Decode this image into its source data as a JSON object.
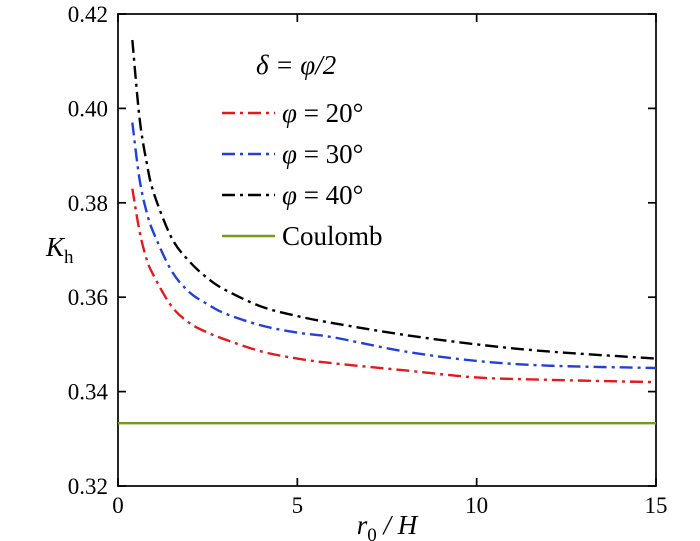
{
  "figure": {
    "background": "#ffffff",
    "border_color": "#000000"
  },
  "chart_data": {
    "type": "line",
    "title": "",
    "xlabel": "r0 / H",
    "ylabel": "Kh",
    "xlabel_parts": {
      "base": "r",
      "sub": "0",
      "suffix": " / H"
    },
    "ylabel_parts": {
      "base": "K",
      "sub": "h"
    },
    "xlim": [
      0,
      15
    ],
    "ylim": [
      0.32,
      0.42
    ],
    "xticks": [
      0,
      5,
      10,
      15
    ],
    "yticks": [
      0.32,
      0.34,
      0.36,
      0.38,
      0.4,
      0.42
    ],
    "grid": false,
    "legend": {
      "title": "δ = φ/2",
      "position": "upper-left-inside",
      "entries": [
        {
          "sym": "φ",
          "rest": " = 20°",
          "series": 0
        },
        {
          "sym": "φ",
          "rest": " = 30°",
          "series": 1
        },
        {
          "sym": "φ",
          "rest": " = 40°",
          "series": 2
        },
        {
          "sym": "",
          "rest": "Coulomb",
          "series": 3
        }
      ]
    },
    "series": [
      {
        "name": "φ = 20°",
        "color": "#e3191c",
        "dash": "dashdot",
        "x": [
          0.4,
          0.6,
          0.8,
          1,
          1.5,
          2,
          2.5,
          3,
          4,
          5,
          6,
          8,
          10,
          12,
          15
        ],
        "y": [
          0.383,
          0.374,
          0.368,
          0.3645,
          0.358,
          0.3545,
          0.3525,
          0.351,
          0.3485,
          0.347,
          0.346,
          0.3445,
          0.343,
          0.3425,
          0.342
        ]
      },
      {
        "name": "φ = 30°",
        "color": "#2040d9",
        "dash": "dashdot",
        "x": [
          0.4,
          0.6,
          0.8,
          1,
          1.5,
          2,
          2.5,
          3,
          4,
          5,
          6,
          8,
          10,
          12,
          15
        ],
        "y": [
          0.397,
          0.385,
          0.378,
          0.3735,
          0.3655,
          0.361,
          0.3585,
          0.3565,
          0.354,
          0.3525,
          0.3515,
          0.3485,
          0.3465,
          0.3455,
          0.345
        ]
      },
      {
        "name": "φ = 40°",
        "color": "#000000",
        "dash": "dashdot",
        "x": [
          0.4,
          0.6,
          0.8,
          1,
          1.5,
          2,
          2.5,
          3,
          4,
          5,
          6,
          8,
          10,
          12,
          15
        ],
        "y": [
          0.4145,
          0.398,
          0.3885,
          0.382,
          0.3725,
          0.3675,
          0.364,
          0.3615,
          0.358,
          0.356,
          0.3545,
          0.352,
          0.35,
          0.3485,
          0.347
        ]
      },
      {
        "name": "Coulomb",
        "color": "#729a1c",
        "dash": "solid",
        "x": [
          0,
          15
        ],
        "y": [
          0.3333,
          0.3333
        ]
      }
    ]
  }
}
